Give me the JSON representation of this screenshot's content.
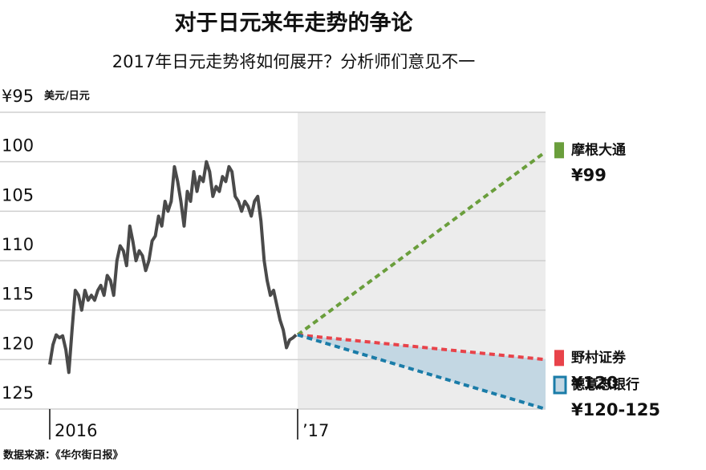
{
  "chart_data": {
    "type": "line",
    "title": "对于日元来年走势的争论",
    "subtitle": "2017年日元走势将如何展开？分析师们意见不一",
    "y_unit": "美元/日元",
    "source": "数据来源：《华尔街日报》",
    "ylim": [
      95,
      125
    ],
    "y_inverted": true,
    "yticks": [
      {
        "value": 95,
        "label": "¥95"
      },
      100,
      105,
      110,
      115,
      120,
      125
    ],
    "xlim": [
      2016,
      2018
    ],
    "xticks": [
      2016,
      {
        "value": 2017,
        "label": "’17"
      }
    ],
    "forecast_region": [
      2017,
      2018
    ],
    "grid": true,
    "series": [
      {
        "color": "#4a4a4a",
        "x": [
          2016.0,
          2016.013,
          2016.026,
          2016.039,
          2016.052,
          2016.065,
          2016.077,
          2016.09,
          2016.103,
          2016.116,
          2016.129,
          2016.142,
          2016.155,
          2016.168,
          2016.181,
          2016.194,
          2016.206,
          2016.219,
          2016.232,
          2016.245,
          2016.258,
          2016.271,
          2016.284,
          2016.297,
          2016.31,
          2016.323,
          2016.335,
          2016.348,
          2016.361,
          2016.374,
          2016.387,
          2016.4,
          2016.413,
          2016.426,
          2016.439,
          2016.452,
          2016.465,
          2016.477,
          2016.49,
          2016.503,
          2016.516,
          2016.529,
          2016.542,
          2016.555,
          2016.568,
          2016.581,
          2016.594,
          2016.606,
          2016.619,
          2016.632,
          2016.645,
          2016.658,
          2016.671,
          2016.684,
          2016.697,
          2016.71,
          2016.723,
          2016.735,
          2016.748,
          2016.761,
          2016.774,
          2016.787,
          2016.8,
          2016.813,
          2016.826,
          2016.839,
          2016.852,
          2016.865,
          2016.877,
          2016.89,
          2016.903,
          2016.916,
          2016.929,
          2016.942,
          2016.955,
          2016.968,
          2016.981,
          2016.994
        ],
        "values": [
          120.5,
          118.5,
          117.5,
          117.8,
          117.6,
          119,
          121.3,
          117,
          113,
          113.5,
          115,
          113,
          114,
          113.5,
          114,
          113,
          112.5,
          113.5,
          111.5,
          112,
          113.5,
          110,
          108.5,
          109,
          110.5,
          106.5,
          108,
          110,
          109,
          109.5,
          111,
          110,
          108,
          107.5,
          105.5,
          106.5,
          104,
          105,
          104,
          100.5,
          102,
          104,
          106.5,
          103,
          104,
          101,
          103,
          101.5,
          102,
          100,
          101,
          103.5,
          102.5,
          103,
          101.5,
          102,
          100.5,
          101,
          103.5,
          104,
          105,
          104,
          104.5,
          105.5,
          104,
          103.5,
          106,
          110,
          112,
          113.5,
          113,
          114.5,
          116,
          117,
          118.8,
          118,
          117.8,
          117.5
        ]
      },
      {
        "name": "摩根大通",
        "color": "#6a9e3c",
        "x": [
          2017,
          2018
        ],
        "values": [
          117.5,
          99
        ],
        "value_labels": [
          null,
          "¥99"
        ]
      },
      {
        "name": "野村证券",
        "color": "#e8434a",
        "x": [
          2017,
          2018
        ],
        "values": [
          117.5,
          120
        ],
        "value_labels": [
          null,
          "¥120"
        ]
      },
      {
        "name": "德意志银行",
        "color": "#1a7ca8",
        "x": [
          2017,
          2018
        ],
        "values": [
          117.5,
          125
        ],
        "value_labels": [
          null,
          "¥120-125"
        ]
      }
    ]
  }
}
